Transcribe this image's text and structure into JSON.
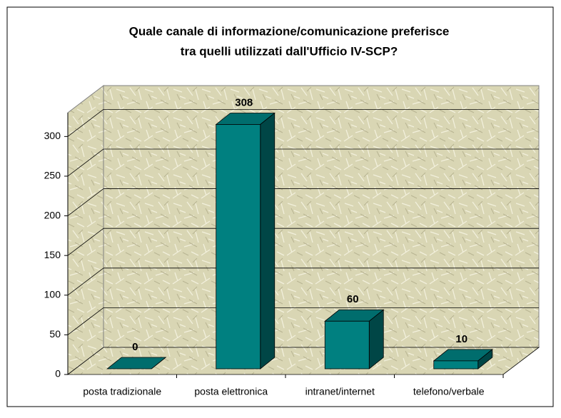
{
  "chart_data": {
    "type": "bar3d",
    "title": [
      "Quale canale di informazione/comunicazione preferisce",
      "tra quelli utilizzati dall'Ufficio IV-SCP?"
    ],
    "categories": [
      "posta tradizionale",
      "posta elettronica",
      "intranet/internet",
      "telefono/verbale"
    ],
    "values": [
      0,
      308,
      60,
      10
    ],
    "color": "#008080",
    "ylim": [
      0,
      330
    ],
    "yticks": [
      0,
      50,
      100,
      150,
      200,
      250,
      300
    ],
    "grid": true
  }
}
